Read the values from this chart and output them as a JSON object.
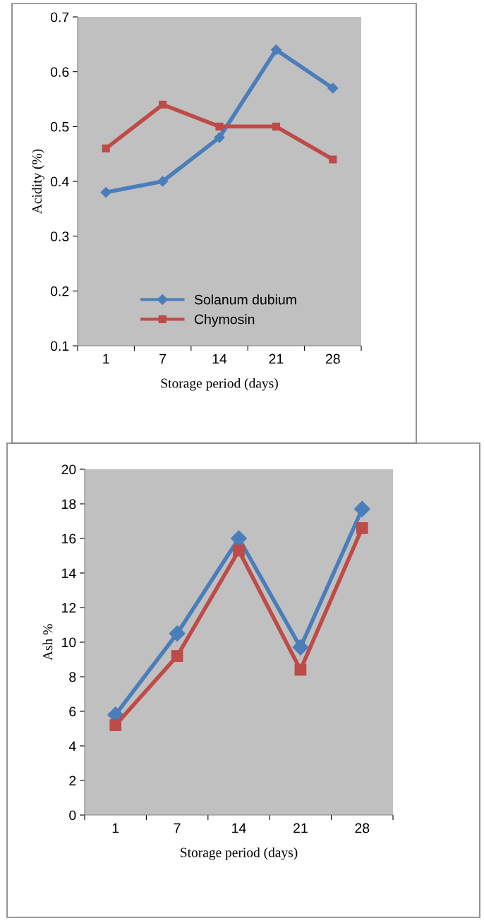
{
  "chart_data": [
    {
      "type": "line",
      "xlabel": "Storage period (days)",
      "ylabel": "Acidity (%)",
      "categories": [
        "1",
        "7",
        "14",
        "21",
        "28"
      ],
      "ylim": [
        0.1,
        0.7
      ],
      "yticks": [
        0.1,
        0.2,
        0.3,
        0.4,
        0.5,
        0.6,
        0.7
      ],
      "grid": false,
      "legend": "bottom",
      "series": [
        {
          "name": "Solanum dubium",
          "color": "#4a7ebb",
          "marker": "diamond",
          "values": [
            0.38,
            0.4,
            0.48,
            0.64,
            0.57
          ]
        },
        {
          "name": "Chymosin",
          "color": "#be4b48",
          "marker": "square",
          "values": [
            0.46,
            0.54,
            0.5,
            0.5,
            0.44
          ]
        }
      ]
    },
    {
      "type": "line",
      "xlabel": "Storage period (days)",
      "ylabel": "Ash %",
      "categories": [
        "1",
        "7",
        "14",
        "21",
        "28"
      ],
      "ylim": [
        0,
        20
      ],
      "yticks": [
        0,
        2,
        4,
        6,
        8,
        10,
        12,
        14,
        16,
        18,
        20
      ],
      "grid": false,
      "legend": false,
      "series": [
        {
          "color": "#4a7ebb",
          "marker": "diamond",
          "values": [
            5.8,
            10.5,
            16.0,
            9.7,
            17.7
          ]
        },
        {
          "color": "#be4b48",
          "marker": "square",
          "values": [
            5.2,
            9.2,
            15.3,
            8.4,
            16.6
          ]
        }
      ]
    }
  ]
}
